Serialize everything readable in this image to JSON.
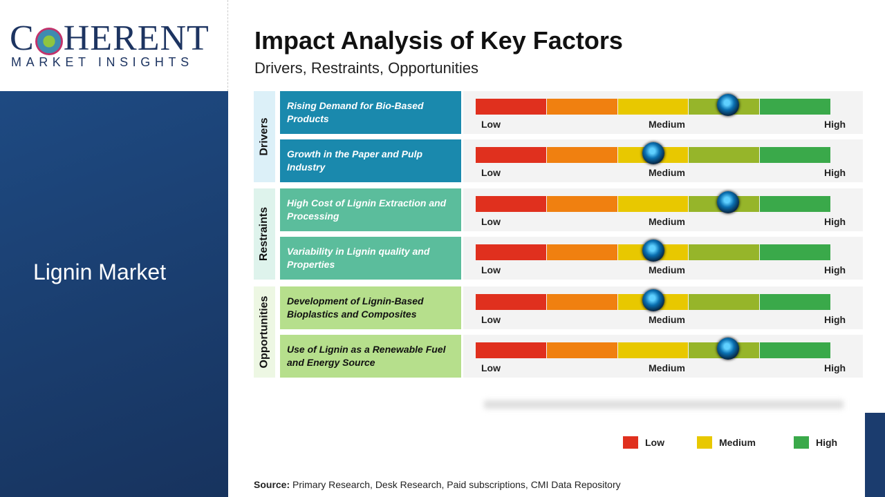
{
  "logo": {
    "line1": "COHERENT",
    "line2": "MARKET INSIGHTS"
  },
  "sidebar": {
    "title": "Lignin Market"
  },
  "header": {
    "title": "Impact Analysis of Key Factors",
    "subtitle": "Drivers, Restraints, Opportunities"
  },
  "scale": {
    "low": "Low",
    "medium": "Medium",
    "high": "High",
    "colors": [
      "#e0301e",
      "#f08010",
      "#e8c800",
      "#96b52a",
      "#3aa94a"
    ]
  },
  "categories": [
    {
      "name": "Drivers",
      "color": "#1a89ad",
      "strip": "#dcf0f8",
      "text": "#ffffff",
      "factors": [
        {
          "label": "Rising Demand for Bio-Based Products",
          "level": 0.71
        },
        {
          "label": "Growth in the Paper and Pulp Industry",
          "level": 0.5
        }
      ]
    },
    {
      "name": "Restraints",
      "color": "#5bbd9c",
      "strip": "#def3ec",
      "text": "#ffffff",
      "factors": [
        {
          "label": "High Cost of Lignin Extraction and Processing",
          "level": 0.71
        },
        {
          "label": "Variability in Lignin quality and Properties",
          "level": 0.5
        }
      ]
    },
    {
      "name": "Opportunities",
      "color": "#b6df8c",
      "strip": "#edf7e3",
      "text": "#111111",
      "factors": [
        {
          "label": "Development of Lignin-Based Bioplastics and Composites",
          "level": 0.5
        },
        {
          "label": "Use of Lignin as a Renewable Fuel and Energy Source",
          "level": 0.71
        }
      ]
    }
  ],
  "legend": [
    {
      "label": "Low",
      "color": "#e0301e"
    },
    {
      "label": "Medium",
      "color": "#e8c800"
    },
    {
      "label": "High",
      "color": "#3aa94a"
    }
  ],
  "source": {
    "prefix": "Source:",
    "text": " Primary Research, Desk Research, Paid subscriptions, CMI Data Repository"
  }
}
